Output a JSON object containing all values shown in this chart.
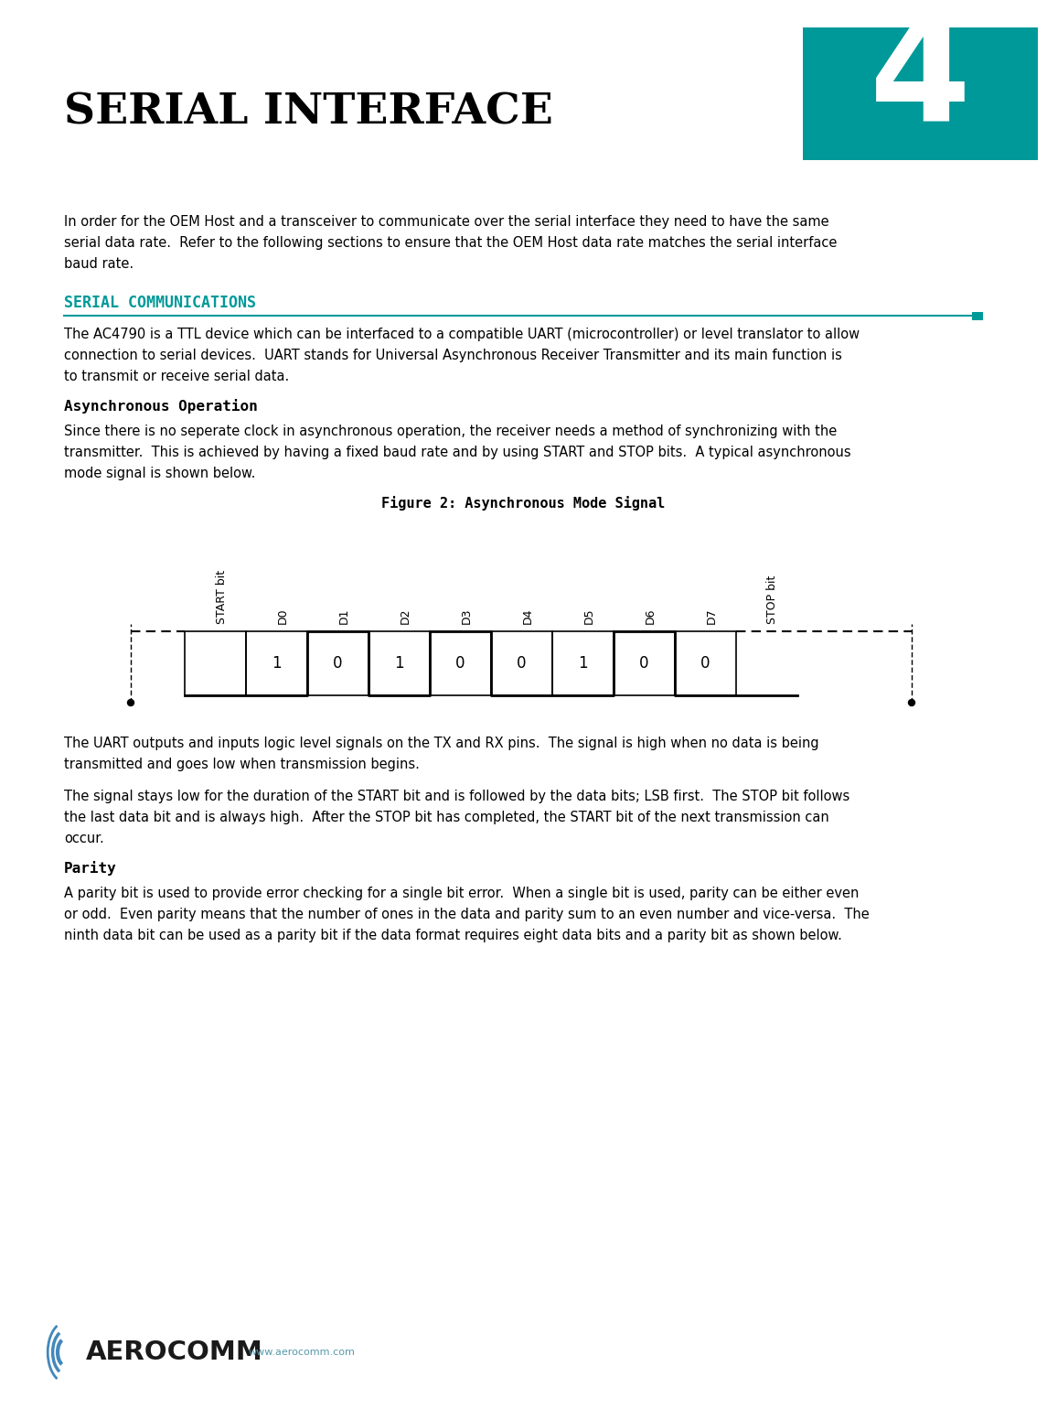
{
  "page_bg": "#ffffff",
  "teal_color": "#009999",
  "header_box_color": "#009999",
  "header_number": "4",
  "header_title": "Serial Interface",
  "section_header": "SERIAL COMMUNICATIONS",
  "subsection1": "Asynchronous Operation",
  "subsection2": "Parity",
  "figure_title": "Figure 2: Asynchronous Mode Signal",
  "para0": "In order for the OEM Host and a transceiver to communicate over the serial interface they need to have the same\nserial data rate.  Refer to the following sections to ensure that the OEM Host data rate matches the serial interface\nbaud rate.",
  "para1": "The AC4790 is a TTL device which can be interfaced to a compatible UART (microcontroller) or level translator to allow\nconnection to serial devices.  UART stands for Universal Asynchronous Receiver Transmitter and its main function is\nto transmit or receive serial data.",
  "para2": "Since there is no seperate clock in asynchronous operation, the receiver needs a method of synchronizing with the\ntransmitter.  This is achieved by having a fixed baud rate and by using START and STOP bits.  A typical asynchronous\nmode signal is shown below.",
  "para3": "The UART outputs and inputs logic level signals on the TX and RX pins.  The signal is high when no data is being\ntransmitted and goes low when transmission begins.",
  "para4": "The signal stays low for the duration of the START bit and is followed by the data bits; LSB first.  The STOP bit follows\nthe last data bit and is always high.  After the STOP bit has completed, the START bit of the next transmission can\noccur.",
  "para5": "A parity bit is used to provide error checking for a single bit error.  When a single bit is used, parity can be either even\nor odd.  Even parity means that the number of ones in the data and parity sum to an even number and vice-versa.  The\nninth data bit can be used as a parity bit if the data format requires eight data bits and a parity bit as shown below.",
  "signal_bits": [
    "START bit",
    "D0",
    "D1",
    "D2",
    "D3",
    "D4",
    "D5",
    "D6",
    "D7",
    "STOP bit"
  ],
  "signal_values": [
    0,
    1,
    0,
    1,
    0,
    0,
    1,
    0,
    0
  ],
  "bit_labels": [
    "1",
    "0",
    "1",
    "0",
    "0",
    "1",
    "0",
    "0"
  ],
  "footer_text": "www.aerocomm.com"
}
